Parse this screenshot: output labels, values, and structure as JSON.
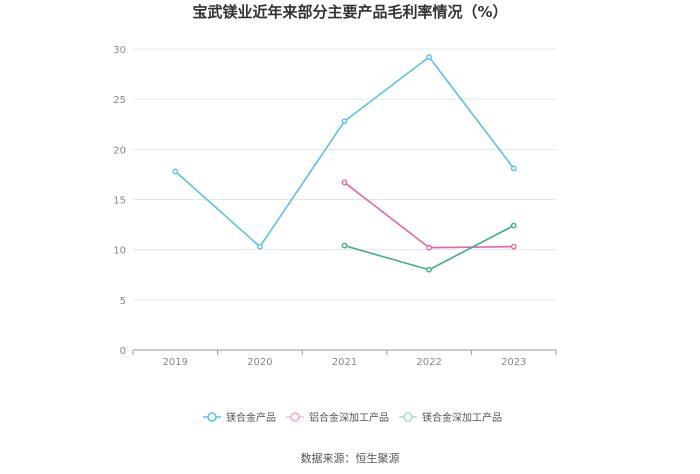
{
  "chart_data": {
    "type": "line",
    "title": "宝武镁业近年来部分主要产品毛利率情况（%）",
    "categories": [
      "2019",
      "2020",
      "2021",
      "2022",
      "2023"
    ],
    "ylim": [
      0,
      30
    ],
    "yticks": [
      0,
      5,
      10,
      15,
      20,
      25,
      30
    ],
    "grid": true,
    "legend_position": "bottom",
    "series": [
      {
        "name": "镁合金产品",
        "color": "#5bc0eb",
        "values": [
          17.8,
          10.3,
          22.8,
          29.2,
          18.1
        ]
      },
      {
        "name": "铝合金深加工产品",
        "color": "#e066b0",
        "values": [
          null,
          null,
          16.7,
          10.2,
          10.3
        ]
      },
      {
        "name": "镁合金深加工产品",
        "color": "#3cb08c",
        "values": [
          null,
          null,
          10.4,
          8.0,
          12.4
        ]
      }
    ]
  },
  "source": "数据来源：恒生聚源"
}
